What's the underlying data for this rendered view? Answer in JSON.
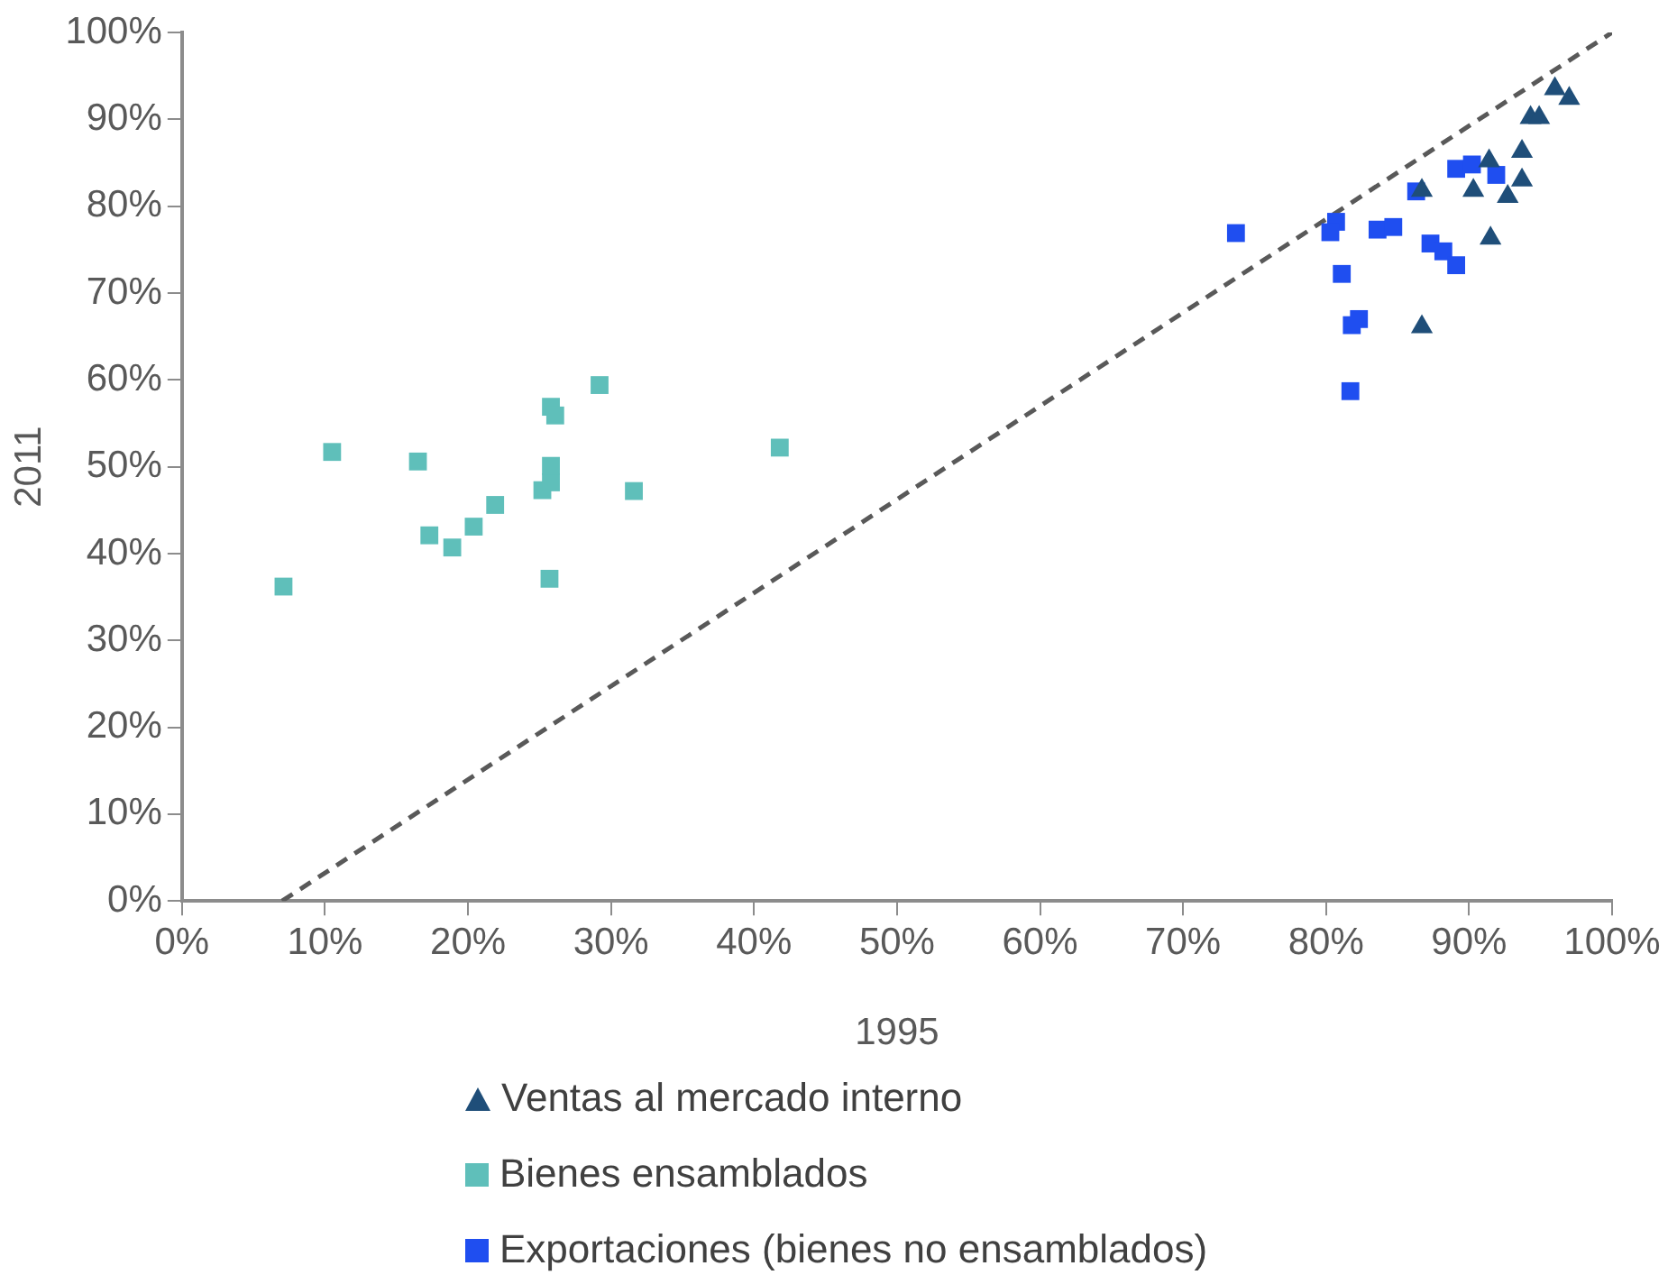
{
  "chart_data": {
    "type": "scatter",
    "xlabel": "1995",
    "ylabel": "2011",
    "xlim": [
      0,
      100
    ],
    "ylim": [
      0,
      100
    ],
    "xticks": [
      {
        "value": 0,
        "label": "0%"
      },
      {
        "value": 10,
        "label": "10%"
      },
      {
        "value": 20,
        "label": "20%"
      },
      {
        "value": 30,
        "label": "30%"
      },
      {
        "value": 40,
        "label": "40%"
      },
      {
        "value": 50,
        "label": "50%"
      },
      {
        "value": 60,
        "label": "60%"
      },
      {
        "value": 70,
        "label": "70%"
      },
      {
        "value": 80,
        "label": "80%"
      },
      {
        "value": 90,
        "label": "90%"
      },
      {
        "value": 100,
        "label": "100%"
      }
    ],
    "yticks": [
      {
        "value": 0,
        "label": "0%"
      },
      {
        "value": 10,
        "label": "10%"
      },
      {
        "value": 20,
        "label": "20%"
      },
      {
        "value": 30,
        "label": "30%"
      },
      {
        "value": 40,
        "label": "40%"
      },
      {
        "value": 50,
        "label": "50%"
      },
      {
        "value": 60,
        "label": "60%"
      },
      {
        "value": 70,
        "label": "70%"
      },
      {
        "value": 80,
        "label": "80%"
      },
      {
        "value": 90,
        "label": "90%"
      },
      {
        "value": 100,
        "label": "100%"
      }
    ],
    "grid": false,
    "legend": "bottom",
    "series": [
      {
        "name": "Ventas al mercado interno",
        "color": "#1f4e79",
        "marker": "triangle",
        "x": [
          96.0,
          97.0,
          94.3,
          94.9,
          93.7,
          93.7,
          91.4,
          90.3,
          92.7,
          86.7,
          91.5,
          86.7
        ],
        "values": [
          93.5,
          92.4,
          90.2,
          90.2,
          86.3,
          83.0,
          85.2,
          81.8,
          81.1,
          81.8,
          76.3,
          66.1
        ]
      },
      {
        "name": "Bienes ensamblados",
        "color": "#5fbfba",
        "marker": "square",
        "x": [
          7.1,
          10.5,
          16.5,
          17.3,
          18.9,
          20.4,
          21.9,
          25.2,
          25.8,
          25.8,
          25.8,
          26.1,
          25.7,
          29.2,
          31.6,
          41.8
        ],
        "values": [
          36.2,
          51.7,
          50.6,
          42.1,
          40.7,
          43.1,
          45.6,
          47.3,
          48.2,
          50.1,
          56.9,
          55.9,
          37.1,
          59.4,
          47.2,
          52.2
        ]
      },
      {
        "name": "Exportaciones (bienes no ensamblados)",
        "color": "#1f4ef0",
        "marker": "square",
        "x": [
          73.7,
          80.7,
          80.3,
          81.1,
          82.3,
          81.8,
          81.7,
          83.6,
          84.7,
          86.3,
          87.3,
          88.2,
          89.1,
          89.1,
          90.2,
          91.9
        ],
        "values": [
          76.9,
          78.2,
          77.0,
          72.2,
          67.0,
          66.3,
          58.7,
          77.3,
          77.6,
          81.7,
          75.7,
          74.8,
          73.2,
          84.3,
          84.8,
          83.6
        ]
      },
      {
        "type": "line",
        "color": "#595959",
        "line_style": "dashed",
        "marker": "none",
        "x": [
          7,
          100
        ],
        "values": [
          0,
          100
        ]
      }
    ]
  }
}
